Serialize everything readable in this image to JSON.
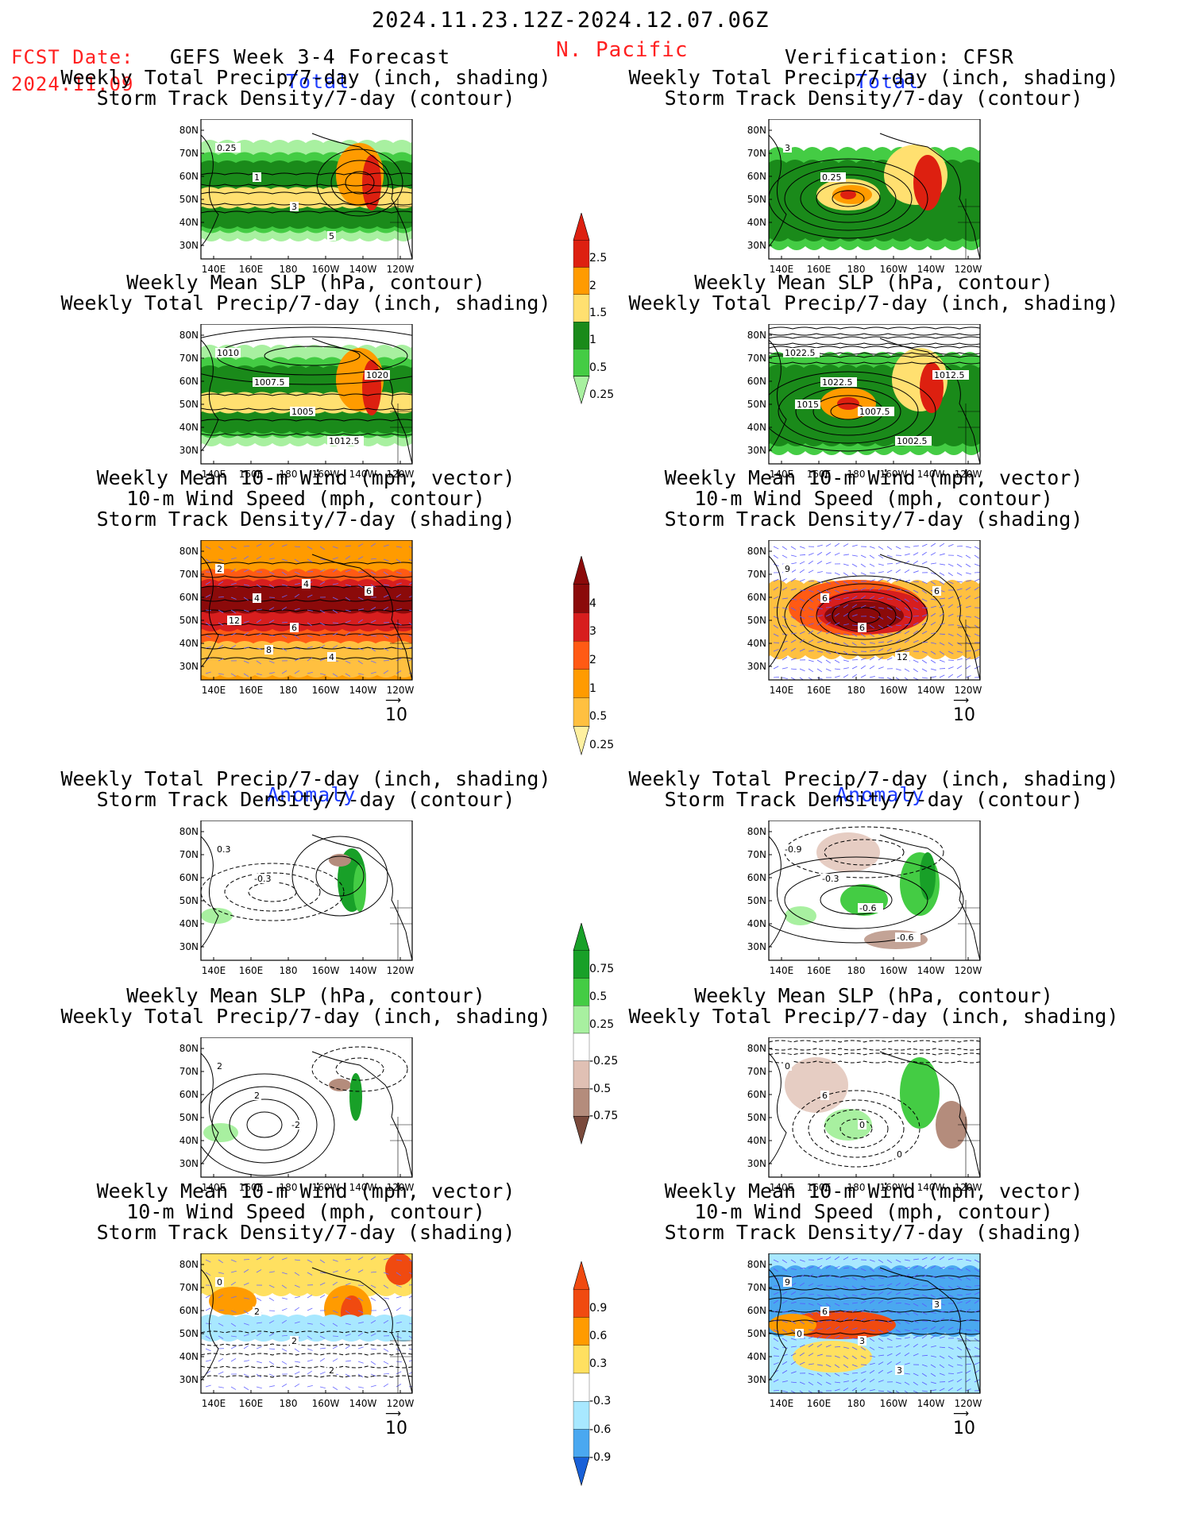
{
  "header": {
    "date_range": "2024.11.23.12Z-2024.12.07.06Z",
    "fcst_label": "FCST Date:",
    "fcst_date": "2024.11.09",
    "model_title": "GEFS Week 3-4 Forecast",
    "region": "N. Pacific",
    "verification": "Verification: CFSR"
  },
  "section_labels": {
    "total": "Total",
    "anomaly": "Anomaly"
  },
  "panel_titles": {
    "precip_track": [
      "Weekly Total Precip/7-day (inch, shading)",
      "Storm Track Density/7-day (contour)"
    ],
    "slp_precip": [
      "Weekly Mean SLP (hPa, contour)",
      "Weekly Total Precip/7-day (inch, shading)"
    ],
    "wind_track": [
      "Weekly Mean 10-m Wind (mph, vector)",
      "10-m Wind Speed (mph, contour)",
      "Storm Track Density/7-day (shading)"
    ]
  },
  "axes": {
    "lat_labels": [
      "80N",
      "70N",
      "60N",
      "50N",
      "40N",
      "30N"
    ],
    "lon_labels": [
      "140E",
      "160E",
      "180",
      "160W",
      "140W",
      "120W"
    ]
  },
  "vector_ref": "10",
  "colorbars": {
    "precip_total": {
      "labels": [
        "2.5",
        "2",
        "1.5",
        "1",
        "0.5",
        "0.25"
      ],
      "colors": [
        "#dd2010",
        "#ff9b00",
        "#ffe070",
        "#1a8a1a",
        "#44cc44",
        "#a8f0a0"
      ]
    },
    "track_total": {
      "labels": [
        "4",
        "3",
        "2",
        "1",
        "0.5",
        "0.25"
      ],
      "colors": [
        "#8b0a0a",
        "#d71e1e",
        "#ff5a14",
        "#ff9b00",
        "#ffc040",
        "#fff0a0"
      ]
    },
    "precip_anom": {
      "labels": [
        "0.75",
        "0.5",
        "0.25",
        "-0.25",
        "-0.5",
        "-0.75"
      ],
      "colors": [
        "#18a028",
        "#44cc44",
        "#a8f0a0",
        "#ffffff",
        "#e0c0b4",
        "#b48c7c",
        "#7a4a3c"
      ]
    },
    "track_anom": {
      "labels": [
        "0.9",
        "0.6",
        "0.3",
        "-0.3",
        "-0.6",
        "-0.9"
      ],
      "colors": [
        "#f04a10",
        "#ff9b00",
        "#ffe060",
        "#ffffff",
        "#a8e8ff",
        "#4aa8f0",
        "#1860d8"
      ]
    }
  },
  "contour_labels": {
    "f_precip": [
      "0.25",
      "1",
      "3",
      "5"
    ],
    "f_slp": [
      "1010",
      "1007.5",
      "1005",
      "1012.5",
      "1020"
    ],
    "f_wind": [
      "2",
      "4",
      "6",
      "4",
      "6",
      "12",
      "8",
      "4"
    ],
    "v_precip": [
      "3",
      "0.25"
    ],
    "v_slp": [
      "1022.5",
      "1022.5",
      "1007.5",
      "1002.5",
      "1012.5",
      "1015"
    ],
    "v_wind": [
      "9",
      "6",
      "6",
      "12",
      "6"
    ],
    "fa_precip": [
      "0.3",
      "-0.3"
    ],
    "fa_slp": [
      "2",
      "2",
      "-2"
    ],
    "fa_wind": [
      "0",
      "2",
      "2",
      "2"
    ],
    "va_precip": [
      "-0.9",
      "-0.3",
      "-0.6",
      "-0.6"
    ],
    "va_slp": [
      "0",
      "6",
      "0",
      "0"
    ],
    "va_wind": [
      "9",
      "6",
      "3",
      "3",
      "3",
      "0"
    ]
  }
}
